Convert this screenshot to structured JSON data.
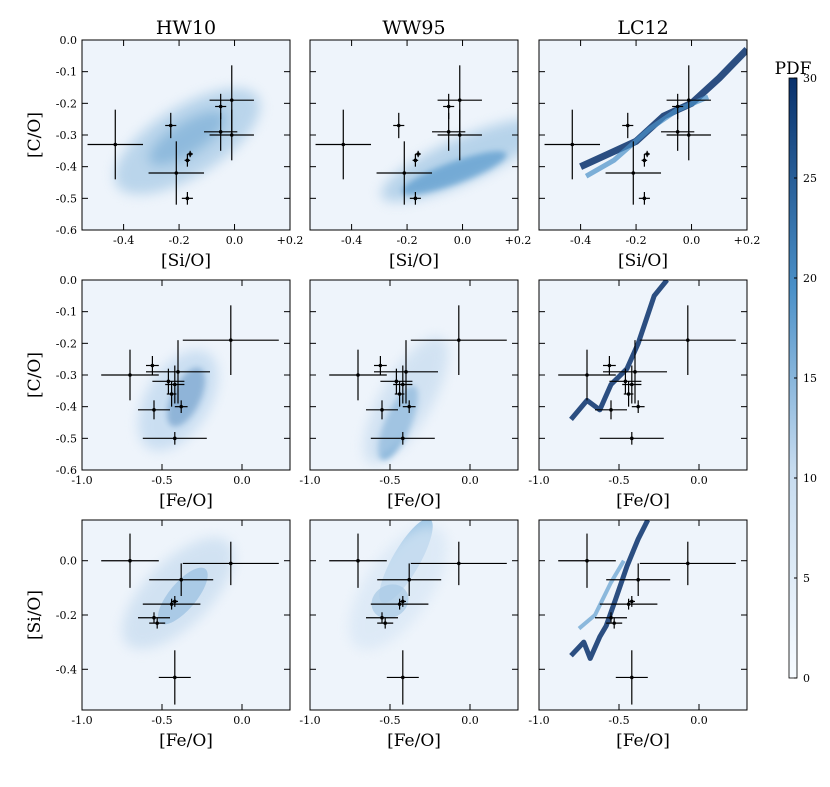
{
  "figure": {
    "column_titles": [
      "HW10",
      "WW95",
      "LC12"
    ],
    "colorbar": {
      "label": "PDF",
      "min": 0,
      "max": 30,
      "ticks": [
        "0",
        "5",
        "10",
        "15",
        "20",
        "25",
        "30"
      ]
    }
  },
  "colors": {
    "density_light": "#eef4fb",
    "density_mid": "#6aa8d8",
    "density_dark": "#08306b",
    "errorbar": "#000000"
  },
  "chart_data": [
    {
      "type": "scatter",
      "row": 0,
      "col": 0,
      "title": "HW10",
      "xlabel": "[Si/O]",
      "ylabel": "[C/O]",
      "xlim": [
        -0.55,
        0.2
      ],
      "ylim": [
        -0.6,
        0.0
      ],
      "xticks": [
        "-0.4",
        "-0.2",
        "0.0",
        "+0.2"
      ],
      "yticks": [
        "-0.6",
        "-0.5",
        "-0.4",
        "-0.3",
        "-0.2",
        "-0.1",
        "0.0"
      ],
      "points": [
        {
          "x": -0.43,
          "y": -0.33,
          "xerr": 0.1,
          "yerr": 0.11
        },
        {
          "x": -0.23,
          "y": -0.27,
          "xerr": 0.02,
          "yerr": 0.04
        },
        {
          "x": -0.21,
          "y": -0.42,
          "xerr": 0.1,
          "yerr": 0.1
        },
        {
          "x": -0.17,
          "y": -0.5,
          "xerr": 0.02,
          "yerr": 0.02
        },
        {
          "x": -0.17,
          "y": -0.38,
          "xerr": 0.01,
          "yerr": 0.02
        },
        {
          "x": -0.16,
          "y": -0.36,
          "xerr": 0.01,
          "yerr": 0.01
        },
        {
          "x": -0.05,
          "y": -0.29,
          "xerr": 0.06,
          "yerr": 0.06
        },
        {
          "x": -0.05,
          "y": -0.21,
          "xerr": 0.02,
          "yerr": 0.04
        },
        {
          "x": -0.01,
          "y": -0.19,
          "xerr": 0.08,
          "yerr": 0.11
        },
        {
          "x": -0.01,
          "y": -0.3,
          "xerr": 0.08,
          "yerr": 0.08
        }
      ]
    },
    {
      "type": "scatter",
      "row": 0,
      "col": 1,
      "title": "WW95",
      "xlabel": "[Si/O]",
      "ylabel": "[C/O]",
      "xlim": [
        -0.55,
        0.2
      ],
      "ylim": [
        -0.6,
        0.0
      ],
      "xticks": [
        "-0.4",
        "-0.2",
        "0.0",
        "+0.2"
      ],
      "yticks": [
        "-0.6",
        "-0.5",
        "-0.4",
        "-0.3",
        "-0.2",
        "-0.1",
        "0.0"
      ],
      "points": [
        {
          "x": -0.43,
          "y": -0.33,
          "xerr": 0.1,
          "yerr": 0.11
        },
        {
          "x": -0.23,
          "y": -0.27,
          "xerr": 0.02,
          "yerr": 0.04
        },
        {
          "x": -0.21,
          "y": -0.42,
          "xerr": 0.1,
          "yerr": 0.1
        },
        {
          "x": -0.17,
          "y": -0.5,
          "xerr": 0.02,
          "yerr": 0.02
        },
        {
          "x": -0.17,
          "y": -0.38,
          "xerr": 0.01,
          "yerr": 0.02
        },
        {
          "x": -0.16,
          "y": -0.36,
          "xerr": 0.01,
          "yerr": 0.01
        },
        {
          "x": -0.05,
          "y": -0.29,
          "xerr": 0.06,
          "yerr": 0.06
        },
        {
          "x": -0.05,
          "y": -0.21,
          "xerr": 0.02,
          "yerr": 0.04
        },
        {
          "x": -0.01,
          "y": -0.19,
          "xerr": 0.08,
          "yerr": 0.11
        },
        {
          "x": -0.01,
          "y": -0.3,
          "xerr": 0.08,
          "yerr": 0.08
        }
      ]
    },
    {
      "type": "scatter",
      "row": 0,
      "col": 2,
      "title": "LC12",
      "xlabel": "[Si/O]",
      "ylabel": "[C/O]",
      "xlim": [
        -0.55,
        0.2
      ],
      "ylim": [
        -0.6,
        0.0
      ],
      "xticks": [
        "-0.4",
        "-0.2",
        "0.0",
        "+0.2"
      ],
      "yticks": [
        "-0.6",
        "-0.5",
        "-0.4",
        "-0.3",
        "-0.2",
        "-0.1",
        "0.0"
      ],
      "points": [
        {
          "x": -0.43,
          "y": -0.33,
          "xerr": 0.1,
          "yerr": 0.11
        },
        {
          "x": -0.23,
          "y": -0.27,
          "xerr": 0.02,
          "yerr": 0.04
        },
        {
          "x": -0.21,
          "y": -0.42,
          "xerr": 0.1,
          "yerr": 0.1
        },
        {
          "x": -0.17,
          "y": -0.5,
          "xerr": 0.02,
          "yerr": 0.02
        },
        {
          "x": -0.17,
          "y": -0.38,
          "xerr": 0.01,
          "yerr": 0.02
        },
        {
          "x": -0.16,
          "y": -0.36,
          "xerr": 0.01,
          "yerr": 0.01
        },
        {
          "x": -0.05,
          "y": -0.29,
          "xerr": 0.06,
          "yerr": 0.06
        },
        {
          "x": -0.05,
          "y": -0.21,
          "xerr": 0.02,
          "yerr": 0.04
        },
        {
          "x": -0.01,
          "y": -0.19,
          "xerr": 0.08,
          "yerr": 0.11
        },
        {
          "x": -0.01,
          "y": -0.3,
          "xerr": 0.08,
          "yerr": 0.08
        }
      ]
    },
    {
      "type": "scatter",
      "row": 1,
      "col": 0,
      "xlabel": "[Fe/O]",
      "ylabel": "[C/O]",
      "xlim": [
        -1.0,
        0.3
      ],
      "ylim": [
        -0.6,
        0.0
      ],
      "xticks": [
        "-1.0",
        "-0.5",
        "0.0"
      ],
      "yticks": [
        "-0.6",
        "-0.5",
        "-0.4",
        "-0.3",
        "-0.2",
        "-0.1",
        "0.0"
      ],
      "points": [
        {
          "x": -0.7,
          "y": -0.3,
          "xerr": 0.18,
          "yerr": 0.08
        },
        {
          "x": -0.56,
          "y": -0.27,
          "xerr": 0.04,
          "yerr": 0.03
        },
        {
          "x": -0.55,
          "y": -0.41,
          "xerr": 0.1,
          "yerr": 0.03
        },
        {
          "x": -0.46,
          "y": -0.32,
          "xerr": 0.1,
          "yerr": 0.04
        },
        {
          "x": -0.44,
          "y": -0.36,
          "xerr": 0.03,
          "yerr": 0.04
        },
        {
          "x": -0.42,
          "y": -0.33,
          "xerr": 0.06,
          "yerr": 0.06
        },
        {
          "x": -0.42,
          "y": -0.5,
          "xerr": 0.2,
          "yerr": 0.02
        },
        {
          "x": -0.4,
          "y": -0.29,
          "xerr": 0.2,
          "yerr": 0.1
        },
        {
          "x": -0.38,
          "y": -0.4,
          "xerr": 0.04,
          "yerr": 0.02
        },
        {
          "x": -0.07,
          "y": -0.19,
          "xerr": 0.3,
          "yerr": 0.11
        }
      ]
    },
    {
      "type": "scatter",
      "row": 1,
      "col": 1,
      "xlabel": "[Fe/O]",
      "ylabel": "[C/O]",
      "xlim": [
        -1.0,
        0.3
      ],
      "ylim": [
        -0.6,
        0.0
      ],
      "xticks": [
        "-1.0",
        "-0.5",
        "0.0"
      ],
      "yticks": [
        "-0.6",
        "-0.5",
        "-0.4",
        "-0.3",
        "-0.2",
        "-0.1",
        "0.0"
      ],
      "points": [
        {
          "x": -0.7,
          "y": -0.3,
          "xerr": 0.18,
          "yerr": 0.08
        },
        {
          "x": -0.56,
          "y": -0.27,
          "xerr": 0.04,
          "yerr": 0.03
        },
        {
          "x": -0.55,
          "y": -0.41,
          "xerr": 0.1,
          "yerr": 0.03
        },
        {
          "x": -0.46,
          "y": -0.32,
          "xerr": 0.1,
          "yerr": 0.04
        },
        {
          "x": -0.44,
          "y": -0.36,
          "xerr": 0.03,
          "yerr": 0.04
        },
        {
          "x": -0.42,
          "y": -0.33,
          "xerr": 0.06,
          "yerr": 0.06
        },
        {
          "x": -0.42,
          "y": -0.5,
          "xerr": 0.2,
          "yerr": 0.02
        },
        {
          "x": -0.4,
          "y": -0.29,
          "xerr": 0.2,
          "yerr": 0.1
        },
        {
          "x": -0.38,
          "y": -0.4,
          "xerr": 0.04,
          "yerr": 0.02
        },
        {
          "x": -0.07,
          "y": -0.19,
          "xerr": 0.3,
          "yerr": 0.11
        }
      ]
    },
    {
      "type": "scatter",
      "row": 1,
      "col": 2,
      "xlabel": "[Fe/O]",
      "ylabel": "[C/O]",
      "xlim": [
        -1.0,
        0.3
      ],
      "ylim": [
        -0.6,
        0.0
      ],
      "xticks": [
        "-1.0",
        "-0.5",
        "0.0"
      ],
      "yticks": [
        "-0.6",
        "-0.5",
        "-0.4",
        "-0.3",
        "-0.2",
        "-0.1",
        "0.0"
      ],
      "points": [
        {
          "x": -0.7,
          "y": -0.3,
          "xerr": 0.18,
          "yerr": 0.08
        },
        {
          "x": -0.56,
          "y": -0.27,
          "xerr": 0.04,
          "yerr": 0.03
        },
        {
          "x": -0.55,
          "y": -0.41,
          "xerr": 0.1,
          "yerr": 0.03
        },
        {
          "x": -0.46,
          "y": -0.32,
          "xerr": 0.1,
          "yerr": 0.04
        },
        {
          "x": -0.44,
          "y": -0.36,
          "xerr": 0.03,
          "yerr": 0.04
        },
        {
          "x": -0.42,
          "y": -0.33,
          "xerr": 0.06,
          "yerr": 0.06
        },
        {
          "x": -0.42,
          "y": -0.5,
          "xerr": 0.2,
          "yerr": 0.02
        },
        {
          "x": -0.4,
          "y": -0.29,
          "xerr": 0.2,
          "yerr": 0.1
        },
        {
          "x": -0.38,
          "y": -0.4,
          "xerr": 0.04,
          "yerr": 0.02
        },
        {
          "x": -0.07,
          "y": -0.19,
          "xerr": 0.3,
          "yerr": 0.11
        }
      ]
    },
    {
      "type": "scatter",
      "row": 2,
      "col": 0,
      "xlabel": "[Fe/O]",
      "ylabel": "[Si/O]",
      "xlim": [
        -1.0,
        0.3
      ],
      "ylim": [
        -0.55,
        0.15
      ],
      "xticks": [
        "-1.0",
        "-0.5",
        "0.0"
      ],
      "yticks": [
        "-0.4",
        "-0.2",
        "0.0"
      ],
      "points": [
        {
          "x": -0.7,
          "y": 0.0,
          "xerr": 0.18,
          "yerr": 0.1
        },
        {
          "x": -0.55,
          "y": -0.21,
          "xerr": 0.1,
          "yerr": 0.02
        },
        {
          "x": -0.53,
          "y": -0.23,
          "xerr": 0.05,
          "yerr": 0.02
        },
        {
          "x": -0.44,
          "y": -0.16,
          "xerr": 0.18,
          "yerr": 0.02
        },
        {
          "x": -0.42,
          "y": -0.43,
          "xerr": 0.1,
          "yerr": 0.1
        },
        {
          "x": -0.42,
          "y": -0.15,
          "xerr": 0.02,
          "yerr": 0.02
        },
        {
          "x": -0.38,
          "y": -0.07,
          "xerr": 0.2,
          "yerr": 0.06
        },
        {
          "x": -0.07,
          "y": -0.01,
          "xerr": 0.3,
          "yerr": 0.08
        }
      ]
    },
    {
      "type": "scatter",
      "row": 2,
      "col": 1,
      "xlabel": "[Fe/O]",
      "ylabel": "[Si/O]",
      "xlim": [
        -1.0,
        0.3
      ],
      "ylim": [
        -0.55,
        0.15
      ],
      "xticks": [
        "-1.0",
        "-0.5",
        "0.0"
      ],
      "yticks": [
        "-0.4",
        "-0.2",
        "0.0"
      ],
      "points": [
        {
          "x": -0.7,
          "y": 0.0,
          "xerr": 0.18,
          "yerr": 0.1
        },
        {
          "x": -0.55,
          "y": -0.21,
          "xerr": 0.1,
          "yerr": 0.02
        },
        {
          "x": -0.53,
          "y": -0.23,
          "xerr": 0.05,
          "yerr": 0.02
        },
        {
          "x": -0.44,
          "y": -0.16,
          "xerr": 0.18,
          "yerr": 0.02
        },
        {
          "x": -0.42,
          "y": -0.43,
          "xerr": 0.1,
          "yerr": 0.1
        },
        {
          "x": -0.42,
          "y": -0.15,
          "xerr": 0.02,
          "yerr": 0.02
        },
        {
          "x": -0.38,
          "y": -0.07,
          "xerr": 0.2,
          "yerr": 0.06
        },
        {
          "x": -0.07,
          "y": -0.01,
          "xerr": 0.3,
          "yerr": 0.08
        }
      ]
    },
    {
      "type": "scatter",
      "row": 2,
      "col": 2,
      "xlabel": "[Fe/O]",
      "ylabel": "[Si/O]",
      "xlim": [
        -1.0,
        0.3
      ],
      "ylim": [
        -0.55,
        0.15
      ],
      "xticks": [
        "-1.0",
        "-0.5",
        "0.0"
      ],
      "yticks": [
        "-0.4",
        "-0.2",
        "0.0"
      ],
      "points": [
        {
          "x": -0.7,
          "y": 0.0,
          "xerr": 0.18,
          "yerr": 0.1
        },
        {
          "x": -0.55,
          "y": -0.21,
          "xerr": 0.1,
          "yerr": 0.02
        },
        {
          "x": -0.53,
          "y": -0.23,
          "xerr": 0.05,
          "yerr": 0.02
        },
        {
          "x": -0.44,
          "y": -0.16,
          "xerr": 0.18,
          "yerr": 0.02
        },
        {
          "x": -0.42,
          "y": -0.43,
          "xerr": 0.1,
          "yerr": 0.1
        },
        {
          "x": -0.42,
          "y": -0.15,
          "xerr": 0.02,
          "yerr": 0.02
        },
        {
          "x": -0.38,
          "y": -0.07,
          "xerr": 0.2,
          "yerr": 0.06
        },
        {
          "x": -0.07,
          "y": -0.01,
          "xerr": 0.3,
          "yerr": 0.08
        }
      ]
    }
  ]
}
